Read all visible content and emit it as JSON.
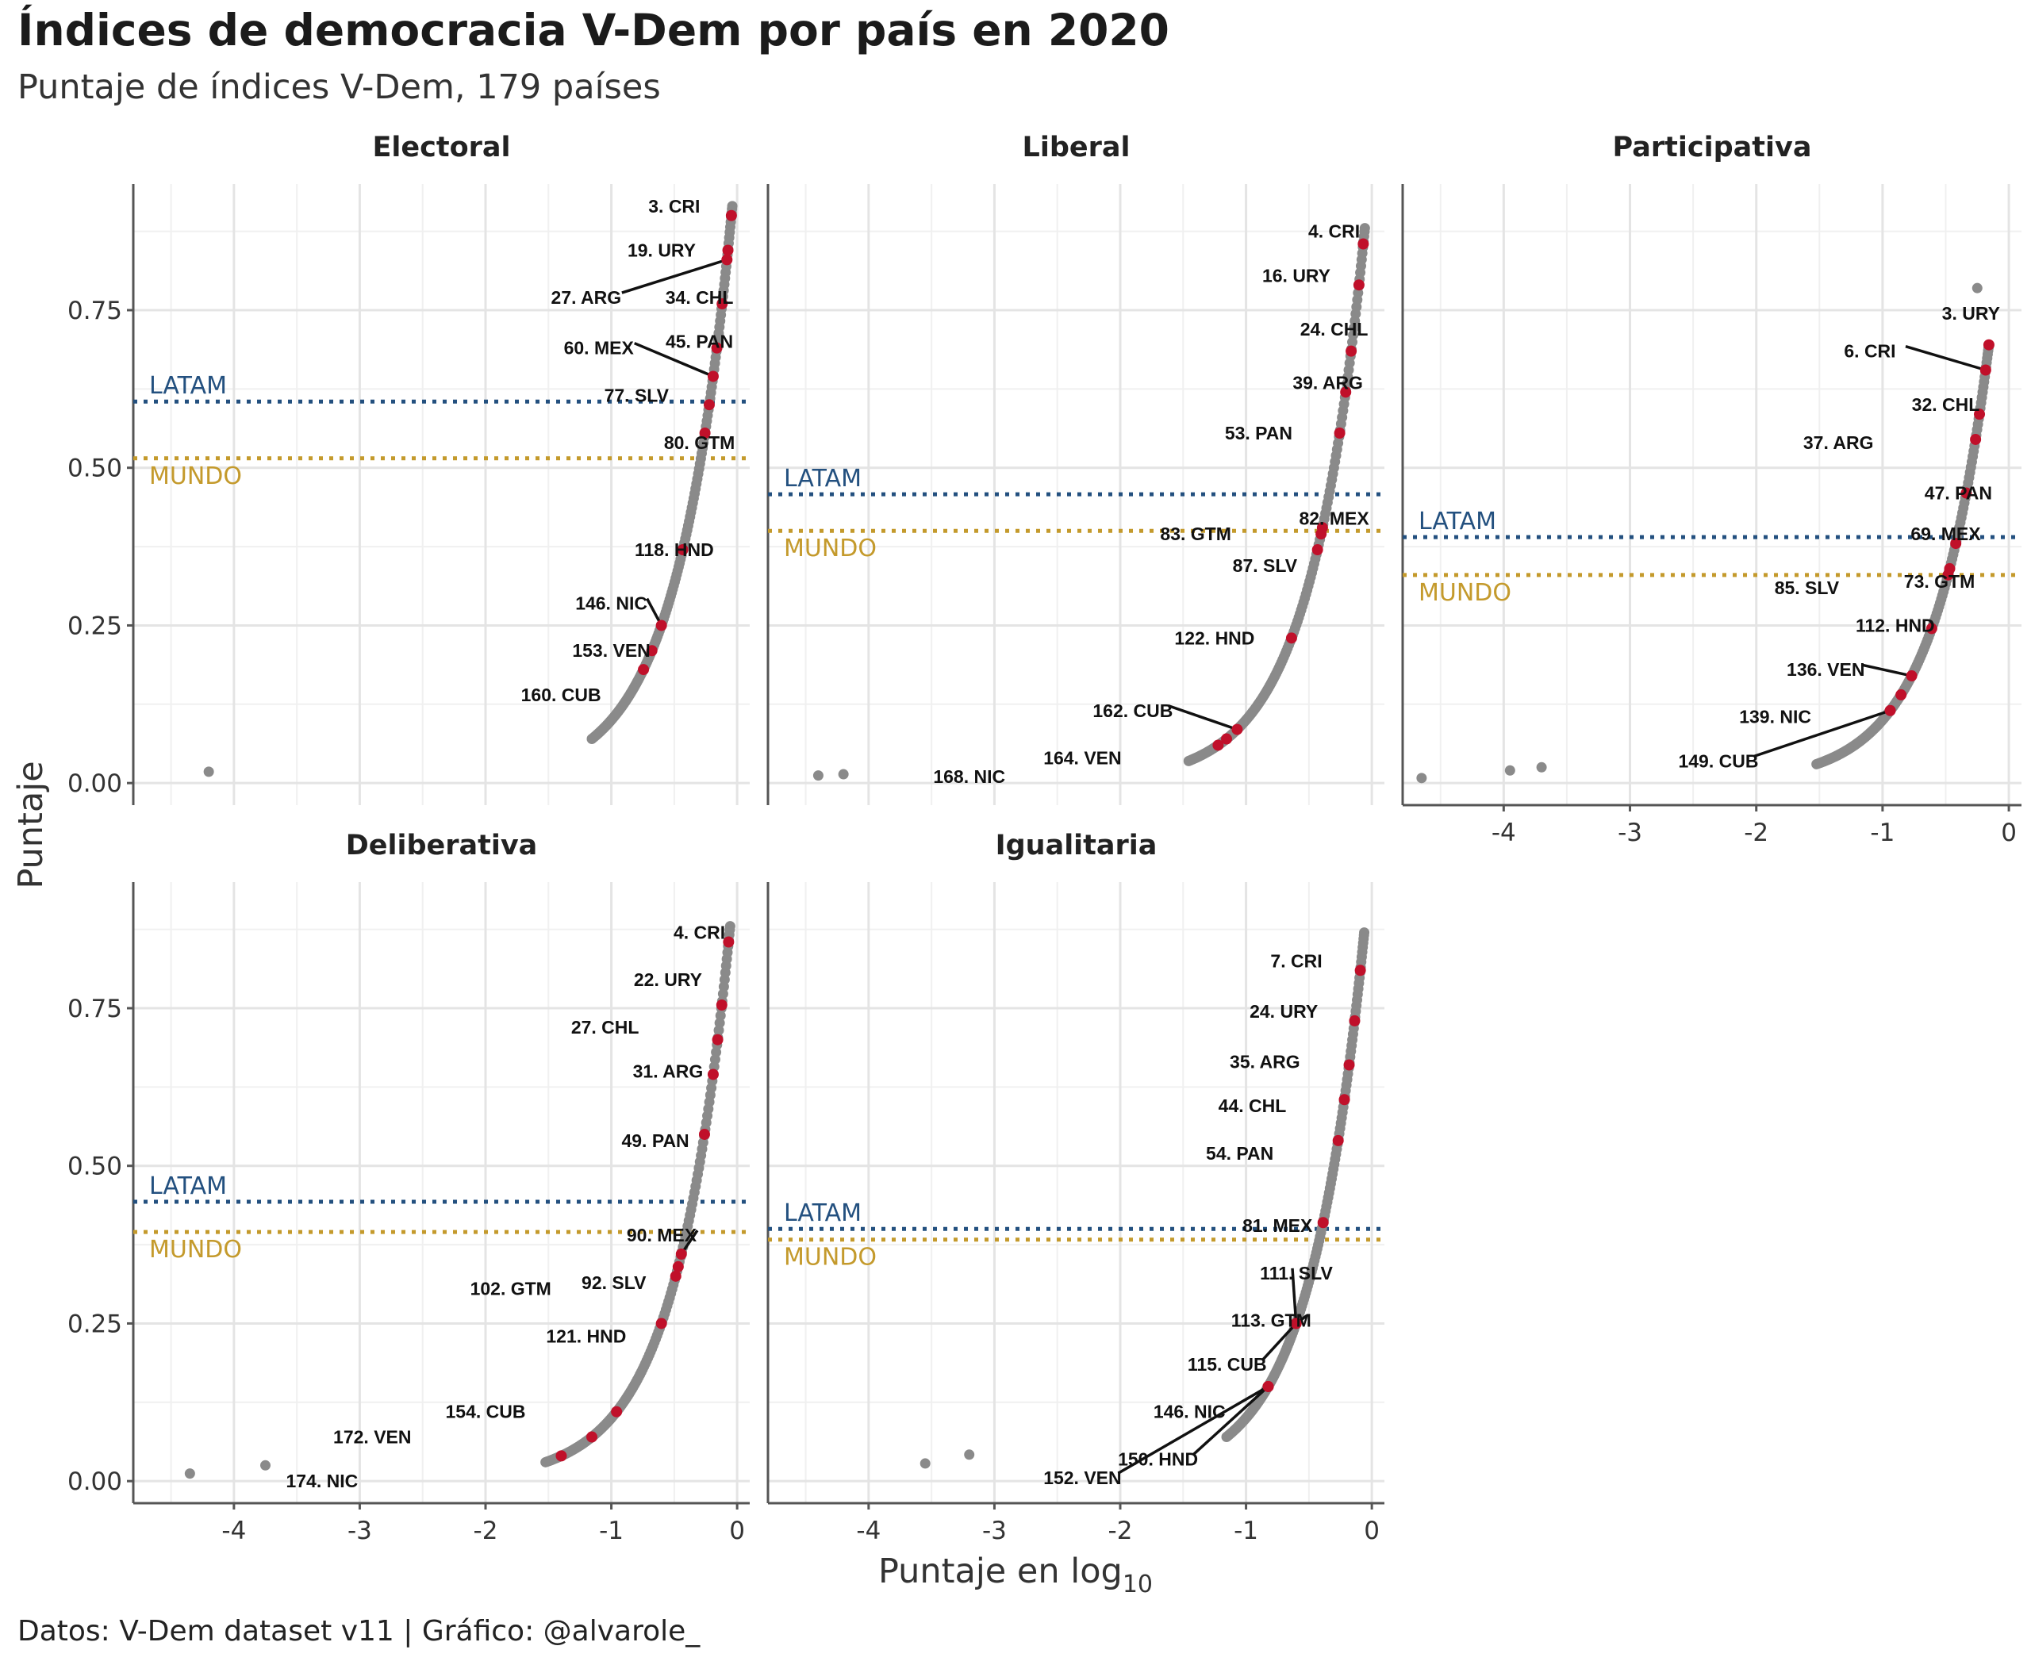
{
  "title": "Índices de democracia V-Dem por país en 2020",
  "subtitle": "Puntaje de índices V-Dem, 179 países",
  "caption": "Datos: V-Dem dataset v11 | Gráfico: @alvarole_",
  "chart_data": {
    "type": "scatter",
    "xlabel_main": "Puntaje en log",
    "xlabel_sub": "10",
    "ylabel": "Puntaje",
    "xlim": [
      -4.8,
      0.1
    ],
    "ylim": [
      -0.035,
      0.95
    ],
    "xticks": [
      -4,
      -3,
      -2,
      -1,
      0
    ],
    "xtick_labels": [
      "-4",
      "-3",
      "-2",
      "-1",
      "0"
    ],
    "yticks": [
      0,
      0.25,
      0.5,
      0.75
    ],
    "ytick_labels": [
      "0.00",
      "0.25",
      "0.50",
      "0.75"
    ],
    "ref_labels": {
      "latam": "LATAM",
      "mundo": "MUNDO"
    },
    "colors": {
      "points": "#8a8a8a",
      "highlight": "#c0102a",
      "latam": "#23507f",
      "mundo": "#c49a2c",
      "grid": "#e4e4e4",
      "axis": "#555555"
    },
    "panels": [
      {
        "name": "Electoral",
        "latam": 0.605,
        "mundo": 0.515,
        "curve": {
          "max": 0.915,
          "min": 0.07
        },
        "outliers": [
          [
            -4.2,
            0.018
          ]
        ],
        "labels": [
          {
            "text": "3. CRI",
            "value": 0.9,
            "tx": -0.5,
            "ty": 0.915,
            "line": false
          },
          {
            "text": "19. URY",
            "value": 0.845,
            "tx": -0.6,
            "ty": 0.845,
            "line": false
          },
          {
            "text": "27. ARG",
            "value": 0.83,
            "tx": -1.2,
            "ty": 0.77,
            "line": true
          },
          {
            "text": "34. CHL",
            "value": 0.76,
            "tx": -0.3,
            "ty": 0.77,
            "line": false
          },
          {
            "text": "45. PAN",
            "value": 0.69,
            "tx": -0.3,
            "ty": 0.7,
            "line": false
          },
          {
            "text": "60. MEX",
            "value": 0.645,
            "tx": -1.1,
            "ty": 0.69,
            "line": true
          },
          {
            "text": "77. SLV",
            "value": 0.6,
            "tx": -0.8,
            "ty": 0.615,
            "line": false
          },
          {
            "text": "80. GTM",
            "value": 0.555,
            "tx": -0.3,
            "ty": 0.54,
            "line": false
          },
          {
            "text": "118. HND",
            "value": 0.37,
            "tx": -0.5,
            "ty": 0.37,
            "line": false
          },
          {
            "text": "146. NIC",
            "value": 0.25,
            "tx": -1.0,
            "ty": 0.285,
            "line": true
          },
          {
            "text": "153. VEN",
            "value": 0.21,
            "tx": -1.0,
            "ty": 0.21,
            "line": false
          },
          {
            "text": "160. CUB",
            "value": 0.18,
            "tx": -1.4,
            "ty": 0.14,
            "line": false
          }
        ]
      },
      {
        "name": "Liberal",
        "latam": 0.458,
        "mundo": 0.4,
        "curve": {
          "max": 0.88,
          "min": 0.035
        },
        "outliers": [
          [
            -4.4,
            0.012
          ],
          [
            -4.2,
            0.014
          ]
        ],
        "labels": [
          {
            "text": "4. CRI",
            "value": 0.855,
            "tx": -0.3,
            "ty": 0.875,
            "line": false
          },
          {
            "text": "16. URY",
            "value": 0.79,
            "tx": -0.6,
            "ty": 0.805,
            "line": false
          },
          {
            "text": "24. CHL",
            "value": 0.685,
            "tx": -0.3,
            "ty": 0.72,
            "line": false
          },
          {
            "text": "39. ARG",
            "value": 0.62,
            "tx": -0.35,
            "ty": 0.635,
            "line": false
          },
          {
            "text": "53. PAN",
            "value": 0.555,
            "tx": -0.9,
            "ty": 0.555,
            "line": false
          },
          {
            "text": "82. MEX",
            "value": 0.405,
            "tx": -0.3,
            "ty": 0.42,
            "line": false
          },
          {
            "text": "83. GTM",
            "value": 0.395,
            "tx": -1.4,
            "ty": 0.395,
            "line": false
          },
          {
            "text": "87. SLV",
            "value": 0.37,
            "tx": -0.85,
            "ty": 0.345,
            "line": false
          },
          {
            "text": "122. HND",
            "value": 0.23,
            "tx": -1.25,
            "ty": 0.23,
            "line": false
          },
          {
            "text": "162. CUB",
            "value": 0.085,
            "tx": -1.9,
            "ty": 0.115,
            "line": true
          },
          {
            "text": "164. VEN",
            "value": 0.07,
            "tx": -2.3,
            "ty": 0.04,
            "line": false
          },
          {
            "text": "168. NIC",
            "value": 0.06,
            "tx": -3.2,
            "ty": 0.01,
            "line": false
          }
        ]
      },
      {
        "name": "Participativa",
        "latam": 0.39,
        "mundo": 0.33,
        "curve": {
          "max": 0.69,
          "min": 0.03
        },
        "outliers": [
          [
            -4.65,
            0.008
          ],
          [
            -3.95,
            0.02
          ],
          [
            -3.7,
            0.025
          ],
          [
            -0.25,
            0.785
          ]
        ],
        "labels": [
          {
            "text": "3. URY",
            "value": 0.695,
            "tx": -0.3,
            "ty": 0.745,
            "line": false
          },
          {
            "text": "6. CRI",
            "value": 0.655,
            "tx": -1.1,
            "ty": 0.685,
            "line": true
          },
          {
            "text": "32. CHL",
            "value": 0.585,
            "tx": -0.5,
            "ty": 0.6,
            "line": false
          },
          {
            "text": "37. ARG",
            "value": 0.545,
            "tx": -1.35,
            "ty": 0.54,
            "line": false
          },
          {
            "text": "47. PAN",
            "value": 0.46,
            "tx": -0.4,
            "ty": 0.46,
            "line": false
          },
          {
            "text": "69. MEX",
            "value": 0.38,
            "tx": -0.5,
            "ty": 0.395,
            "line": false
          },
          {
            "text": "85. SLV",
            "value": 0.33,
            "tx": -1.6,
            "ty": 0.31,
            "line": false
          },
          {
            "text": "73. GTM",
            "value": 0.34,
            "tx": -0.55,
            "ty": 0.32,
            "line": false
          },
          {
            "text": "112. HND",
            "value": 0.245,
            "tx": -0.9,
            "ty": 0.25,
            "line": true
          },
          {
            "text": "136. VEN",
            "value": 0.17,
            "tx": -1.45,
            "ty": 0.18,
            "line": true
          },
          {
            "text": "139. NIC",
            "value": 0.14,
            "tx": -1.85,
            "ty": 0.105,
            "line": false
          },
          {
            "text": "149. CUB",
            "value": 0.115,
            "tx": -2.3,
            "ty": 0.035,
            "line": true
          }
        ]
      },
      {
        "name": "Deliberativa",
        "latam": 0.443,
        "mundo": 0.395,
        "curve": {
          "max": 0.88,
          "min": 0.03
        },
        "outliers": [
          [
            -4.35,
            0.012
          ],
          [
            -3.75,
            0.025
          ]
        ],
        "labels": [
          {
            "text": "4. CRI",
            "value": 0.855,
            "tx": -0.3,
            "ty": 0.87,
            "line": false
          },
          {
            "text": "22. URY",
            "value": 0.755,
            "tx": -0.55,
            "ty": 0.795,
            "line": false
          },
          {
            "text": "27. CHL",
            "value": 0.7,
            "tx": -1.05,
            "ty": 0.72,
            "line": false
          },
          {
            "text": "31. ARG",
            "value": 0.645,
            "tx": -0.55,
            "ty": 0.65,
            "line": false
          },
          {
            "text": "49. PAN",
            "value": 0.55,
            "tx": -0.65,
            "ty": 0.54,
            "line": false
          },
          {
            "text": "90. MEX",
            "value": 0.36,
            "tx": -0.6,
            "ty": 0.39,
            "line": true
          },
          {
            "text": "102. GTM",
            "value": 0.325,
            "tx": -1.8,
            "ty": 0.305,
            "line": false
          },
          {
            "text": "92. SLV",
            "value": 0.34,
            "tx": -0.98,
            "ty": 0.315,
            "line": false
          },
          {
            "text": "121. HND",
            "value": 0.25,
            "tx": -1.2,
            "ty": 0.23,
            "line": false
          },
          {
            "text": "154. CUB",
            "value": 0.11,
            "tx": -2.0,
            "ty": 0.11,
            "line": false
          },
          {
            "text": "172. VEN",
            "value": 0.07,
            "tx": -2.9,
            "ty": 0.07,
            "line": false
          },
          {
            "text": "174. NIC",
            "value": 0.04,
            "tx": -3.3,
            "ty": 0.0,
            "line": false
          }
        ]
      },
      {
        "name": "Igualitaria",
        "latam": 0.4,
        "mundo": 0.383,
        "curve": {
          "max": 0.87,
          "min": 0.07
        },
        "outliers": [
          [
            -3.55,
            0.028
          ],
          [
            -3.2,
            0.042
          ]
        ],
        "labels": [
          {
            "text": "7. CRI",
            "value": 0.81,
            "tx": -0.6,
            "ty": 0.825,
            "line": false
          },
          {
            "text": "24. URY",
            "value": 0.73,
            "tx": -0.7,
            "ty": 0.745,
            "line": false
          },
          {
            "text": "35. ARG",
            "value": 0.66,
            "tx": -0.85,
            "ty": 0.665,
            "line": false
          },
          {
            "text": "44. CHL",
            "value": 0.605,
            "tx": -0.95,
            "ty": 0.595,
            "line": false
          },
          {
            "text": "54. PAN",
            "value": 0.54,
            "tx": -1.05,
            "ty": 0.52,
            "line": false
          },
          {
            "text": "81. MEX",
            "value": 0.41,
            "tx": -0.75,
            "ty": 0.405,
            "line": false
          },
          {
            "text": "111. SLV",
            "value": 0.25,
            "tx": -0.6,
            "ty": 0.33,
            "line": true
          },
          {
            "text": "113. GTM",
            "value": 0.25,
            "tx": -0.8,
            "ty": 0.255,
            "line": true
          },
          {
            "text": "115. CUB",
            "value": 0.25,
            "tx": -1.15,
            "ty": 0.185,
            "line": true
          },
          {
            "text": "146. NIC",
            "value": 0.15,
            "tx": -1.45,
            "ty": 0.11,
            "line": false
          },
          {
            "text": "150. HND",
            "value": 0.15,
            "tx": -1.7,
            "ty": 0.035,
            "line": true
          },
          {
            "text": "152. VEN",
            "value": 0.15,
            "tx": -2.3,
            "ty": 0.005,
            "line": true
          }
        ]
      }
    ]
  }
}
